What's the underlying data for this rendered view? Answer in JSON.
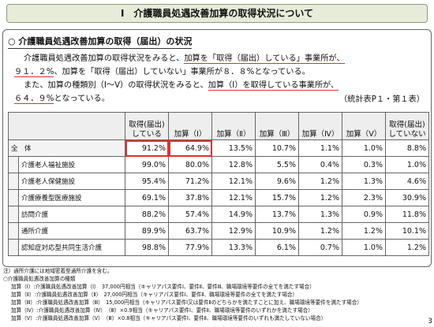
{
  "header": {
    "title": "Ⅰ　介護職員処遇改善加算の取得状況について"
  },
  "section": {
    "heading": "○ 介護職員処遇改善加算の取得（届出）の状況",
    "paragraph": [
      [
        {
          "text": "介護職員処遇改善加算の取得状況をみると、",
          "underline": false
        },
        {
          "text": "加算を「取得（届出）している」事業所が、",
          "underline": true
        }
      ],
      [
        {
          "text": "９１．２%",
          "underline": true
        },
        {
          "text": "、加算を「取得（届出）していない」事業所が８．８%となっている。",
          "underline": false
        }
      ],
      [
        {
          "text": "また、加算の種類別（Ⅰ～Ⅴ）の取得状況をみると、",
          "underline": false
        },
        {
          "text": "加算（Ⅰ）を取得している事業所が、",
          "underline": true
        }
      ],
      [
        {
          "text": "６４．９%",
          "underline": true
        },
        {
          "text": "となっている。",
          "underline": false
        }
      ]
    ],
    "source": "（統計表P１・第１表）"
  },
  "table": {
    "columns": [
      "取得(届出)している",
      "加算（Ⅰ）",
      "加算（Ⅱ）",
      "加算（Ⅲ）",
      "加算（Ⅳ）",
      "加算（Ⅴ）",
      "取得(届出)していない"
    ],
    "rows": [
      {
        "label": "全　体",
        "cells": [
          "91.2%",
          "64.9%",
          "13.5%",
          "10.7%",
          "1.1%",
          "1.0%",
          "8.8%"
        ]
      },
      {
        "label": "介護老人福祉施設",
        "cells": [
          "99.0%",
          "80.0%",
          "12.8%",
          "5.5%",
          "0.4%",
          "0.3%",
          "1.0%"
        ]
      },
      {
        "label": "介護老人保健施設",
        "cells": [
          "95.4%",
          "71.2%",
          "12.1%",
          "9.6%",
          "1.2%",
          "1.3%",
          "4.6%"
        ]
      },
      {
        "label": "介護療養型医療施設",
        "cells": [
          "69.1%",
          "37.8%",
          "12.1%",
          "15.7%",
          "1.2%",
          "2.3%",
          "30.9%"
        ]
      },
      {
        "label": "訪問介護",
        "cells": [
          "88.2%",
          "57.4%",
          "14.9%",
          "13.7%",
          "1.3%",
          "0.9%",
          "11.8%"
        ]
      },
      {
        "label": "通所介護",
        "cells": [
          "89.9%",
          "63.7%",
          "12.9%",
          "10.9%",
          "1.2%",
          "1.2%",
          "10.1%"
        ]
      },
      {
        "label": "認知症対応型共同生活介護",
        "cells": [
          "98.8%",
          "77.9%",
          "13.3%",
          "6.1%",
          "0.7%",
          "1.0%",
          "1.2%"
        ]
      }
    ]
  },
  "notes": [
    "注）通所介護には地域密着型通所介護を含む。",
    "○介護職員処遇改善加算の種類",
    "加算（Ⅰ）:介護職員処遇改善加算（Ⅰ）　37,000円相当（キャリアパス要件Ⅰ、要件Ⅱ、要件Ⅲ、職場環境等要件の全てを満たす場合）",
    "加算（Ⅱ）:介護職員処遇改善加算（Ⅱ）　27,000円相当（キャリアパス要件Ⅰ、要件Ⅱ、職場環境等要件の全てを満たす場合）",
    "加算（Ⅲ）:介護職員処遇改善加算（Ⅲ）　15,000円相当（キャリアパス要件Ⅰ又は要件Ⅱのどちらかを満たすことに加え、職場環境等要件を満たす場合）",
    "加算（Ⅳ）:介護職員処遇改善加算（Ⅳ）　（Ⅲ）×0.9相当（キャリアパス要件Ⅰ、要件Ⅱ、職場環境等要件のいずれかを満たす場合）",
    "加算（Ⅴ）:介護職員処遇改善加算（Ⅴ）　（Ⅲ）×0.8相当（キャリアパス要件Ⅰ、要件Ⅱ、職場環境等要件のいずれも満たしていない場合）"
  ],
  "page_number": "3"
}
